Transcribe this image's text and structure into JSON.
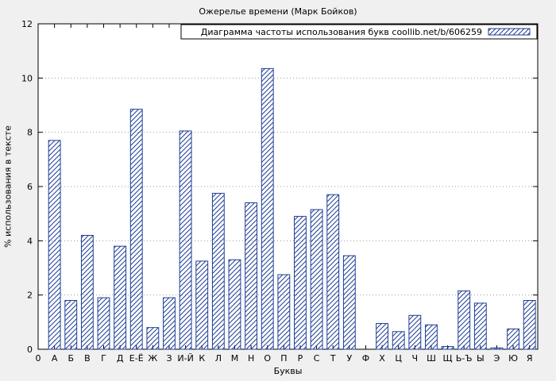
{
  "chart_data": {
    "type": "bar",
    "title": "Ожерелье времени (Марк Бойков)",
    "legend": "Диаграмма частоты использования букв coollib.net/b/606259",
    "legend_position": "top-right",
    "xlabel": "Буквы",
    "ylabel": "% использования в тексте",
    "ylim": [
      0,
      12
    ],
    "yticks": [
      0,
      2,
      4,
      6,
      8,
      10,
      12
    ],
    "origin_tick_label": "0",
    "grid": "horizontal dotted",
    "categories": [
      "А",
      "Б",
      "В",
      "Г",
      "Д",
      "Е-Ё",
      "Ж",
      "З",
      "И-Й",
      "К",
      "Л",
      "М",
      "Н",
      "О",
      "П",
      "Р",
      "С",
      "Т",
      "У",
      "Ф",
      "Х",
      "Ц",
      "Ч",
      "Ш",
      "Щ",
      "Ь-Ъ",
      "Ы",
      "Э",
      "Ю",
      "Я"
    ],
    "values": [
      7.7,
      1.8,
      4.2,
      1.9,
      3.8,
      8.85,
      0.8,
      1.9,
      8.05,
      3.25,
      5.75,
      3.3,
      5.4,
      10.35,
      2.75,
      4.9,
      5.15,
      5.7,
      3.45,
      0,
      0.95,
      0.65,
      1.25,
      0.9,
      0.1,
      2.15,
      1.7,
      0.05,
      0.75,
      1.8
    ],
    "colors": {
      "background": "#f0f0f0",
      "plot_background": "#ffffff",
      "bar": "#1f3e96",
      "axis": "#000000",
      "grid": "#9a9a9a",
      "text": "#000000"
    }
  }
}
